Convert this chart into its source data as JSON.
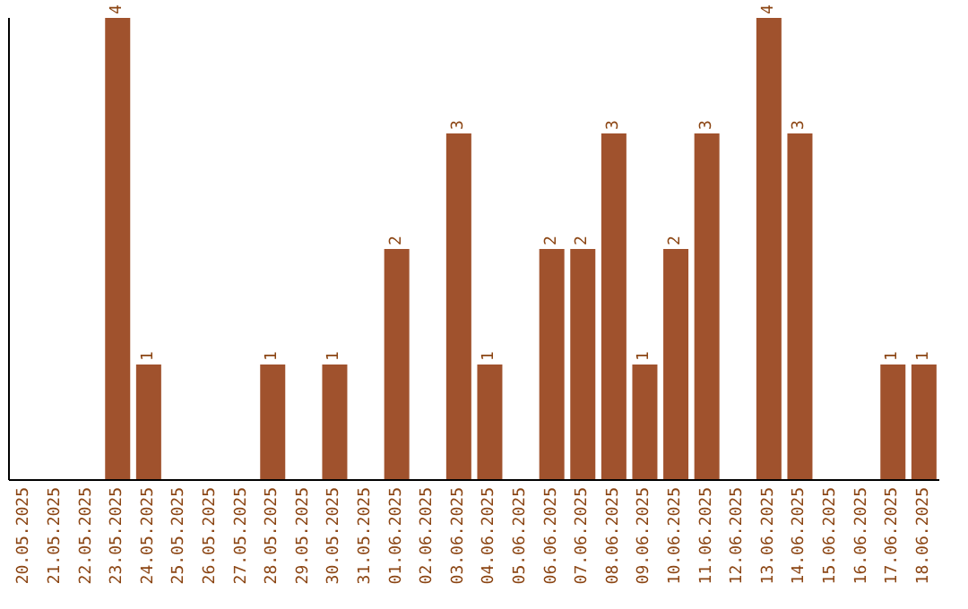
{
  "chart_data": {
    "type": "bar",
    "categories": [
      "20.05.2025",
      "21.05.2025",
      "22.05.2025",
      "23.05.2025",
      "24.05.2025",
      "25.05.2025",
      "26.05.2025",
      "27.05.2025",
      "28.05.2025",
      "29.05.2025",
      "30.05.2025",
      "31.05.2025",
      "01.06.2025",
      "02.06.2025",
      "03.06.2025",
      "04.06.2025",
      "05.06.2025",
      "06.06.2025",
      "07.06.2025",
      "08.06.2025",
      "09.06.2025",
      "10.06.2025",
      "11.06.2025",
      "12.06.2025",
      "13.06.2025",
      "14.06.2025",
      "15.06.2025",
      "16.06.2025",
      "17.06.2025",
      "18.06.2025"
    ],
    "values": [
      0,
      0,
      0,
      4,
      1,
      0,
      0,
      0,
      1,
      0,
      1,
      0,
      2,
      0,
      3,
      1,
      0,
      2,
      2,
      3,
      1,
      2,
      3,
      0,
      4,
      3,
      0,
      0,
      1,
      1
    ],
    "value_labels": [
      null,
      null,
      null,
      "4",
      "1",
      null,
      null,
      null,
      "1",
      null,
      "1",
      null,
      "2",
      null,
      "3",
      "1",
      null,
      "2",
      "2",
      "3",
      "1",
      "2",
      "3",
      null,
      "4",
      "3",
      null,
      null,
      "1",
      "1"
    ],
    "color": "#a0522d",
    "tick_labels": "x",
    "grid": false
  }
}
